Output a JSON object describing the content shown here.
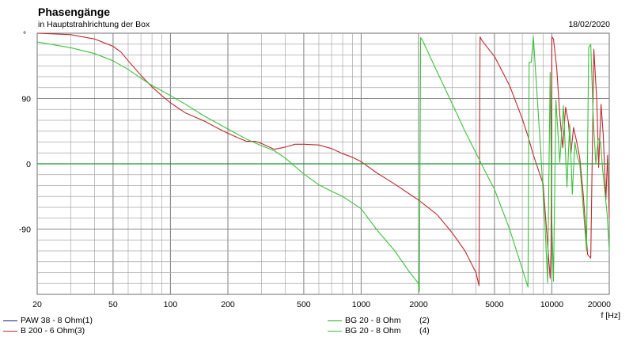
{
  "header": {
    "title": "Phasengänge",
    "subtitle": "in Hauptstrahlrichtung der Box",
    "date": "18/02/2020"
  },
  "colors": {
    "grid": "#a8a8a8",
    "zero_line": "#1a1a8c",
    "background": "#ffffff"
  },
  "chart_data": {
    "type": "line",
    "title": "Phasengänge",
    "subtitle": "in Hauptstrahlrichtung der Box",
    "xlabel": "f [Hz]",
    "ylabel": "°",
    "xscale": "log",
    "xlim": [
      20,
      20000
    ],
    "ylim": [
      -180,
      180
    ],
    "grid": true,
    "x_ticks": [
      20,
      50,
      100,
      200,
      500,
      1000,
      2000,
      5000,
      10000,
      20000
    ],
    "x_tick_labels": [
      "20",
      "50",
      "100",
      "200",
      "500",
      "1000",
      "2000",
      "5000",
      "10000",
      "20000"
    ],
    "y_ticks": [
      90,
      0,
      -90
    ],
    "y_tick_labels": [
      "90",
      "0",
      "-90"
    ],
    "y_unit_label": "°",
    "series": [
      {
        "name": "PAW 38 - 8 Ohm(1)",
        "color": "#1a1a8c",
        "x": [
          20,
          20000
        ],
        "y": [
          0,
          0
        ]
      },
      {
        "name": "B 200 - 6 Ohm(3)",
        "color": "#c0282d",
        "x": [
          20,
          30,
          40,
          50,
          55,
          60,
          70,
          80,
          90,
          100,
          120,
          150,
          180,
          200,
          250,
          280,
          300,
          350,
          400,
          450,
          500,
          600,
          700,
          800,
          900,
          1000,
          1200,
          1500,
          1800,
          2000,
          2500,
          3000,
          3500,
          4000,
          4150,
          4200,
          4300,
          5000,
          6000,
          7000,
          7500,
          8000,
          9000,
          9800,
          9900,
          10000,
          10200,
          10600,
          11000,
          11400,
          11800,
          12200,
          12600,
          13000,
          13500,
          14000,
          14600,
          15400,
          16000,
          16600,
          17200,
          17600,
          18100,
          18600,
          19200,
          19600,
          20000
        ],
        "y": [
          180,
          178,
          172,
          162,
          154,
          142,
          122,
          106,
          94,
          84,
          70,
          59,
          48,
          42,
          31,
          31,
          28,
          20,
          23,
          27,
          27,
          26,
          21,
          14,
          9,
          3,
          -12,
          -28,
          -42,
          -50,
          -70,
          -95,
          -120,
          -150,
          -168,
          175,
          170,
          148,
          108,
          62,
          38,
          12,
          -28,
          -158,
          -120,
          175,
          172,
          132,
          68,
          22,
          78,
          58,
          15,
          50,
          30,
          8,
          -42,
          -125,
          -130,
          158,
          88,
          -5,
          82,
          40,
          -50,
          12,
          -75
        ]
      },
      {
        "name": "BG 20 - 8 Ohm        (2)",
        "color": "#22aa22",
        "x": [
          20,
          20000
        ],
        "y": [
          0,
          0
        ]
      },
      {
        "name": "BG 20 - 8 Ohm        (4)",
        "color": "#39c239",
        "x": [
          20,
          30,
          40,
          50,
          60,
          70,
          80,
          100,
          120,
          150,
          200,
          250,
          300,
          350,
          400,
          500,
          600,
          700,
          800,
          1000,
          1200,
          1500,
          1800,
          2000,
          2020,
          2050,
          2100,
          2500,
          3000,
          3500,
          4000,
          4500,
          5000,
          6000,
          7000,
          7500,
          7600,
          7800,
          8000,
          8200,
          8700,
          9200,
          9500,
          9800,
          10000,
          10200,
          10500,
          11000,
          11500,
          12000,
          12400,
          12800,
          13200,
          13600,
          14000,
          14400,
          14800,
          15200,
          15600,
          16000,
          16500,
          17000,
          17500,
          18000,
          18500,
          19000,
          19500,
          20000
        ],
        "y": [
          168,
          160,
          152,
          142,
          130,
          118,
          108,
          94,
          82,
          66,
          48,
          34,
          25,
          18,
          8,
          -14,
          -29,
          -38,
          -45,
          -62,
          -90,
          -120,
          -150,
          -165,
          -176,
          174,
          170,
          127,
          83,
          45,
          15,
          -12,
          -35,
          -90,
          -145,
          -170,
          140,
          140,
          175,
          130,
          26,
          -82,
          -164,
          126,
          -80,
          -162,
          88,
          2,
          80,
          -32,
          55,
          -42,
          30,
          10,
          0,
          -40,
          -80,
          -120,
          160,
          165,
          60,
          0,
          35,
          30,
          -10,
          -40,
          -70,
          -120
        ]
      }
    ]
  },
  "legend": {
    "items": [
      {
        "label": "PAW 38 - 8 Ohm(1)",
        "color": "#1a1a8c"
      },
      {
        "label": "B 200 - 6 Ohm(3)",
        "color": "#c0282d"
      },
      {
        "label": "BG 20 - 8 Ohm        (2)",
        "color": "#22aa22"
      },
      {
        "label": "BG 20 - 8 Ohm        (4)",
        "color": "#39c239"
      }
    ]
  }
}
